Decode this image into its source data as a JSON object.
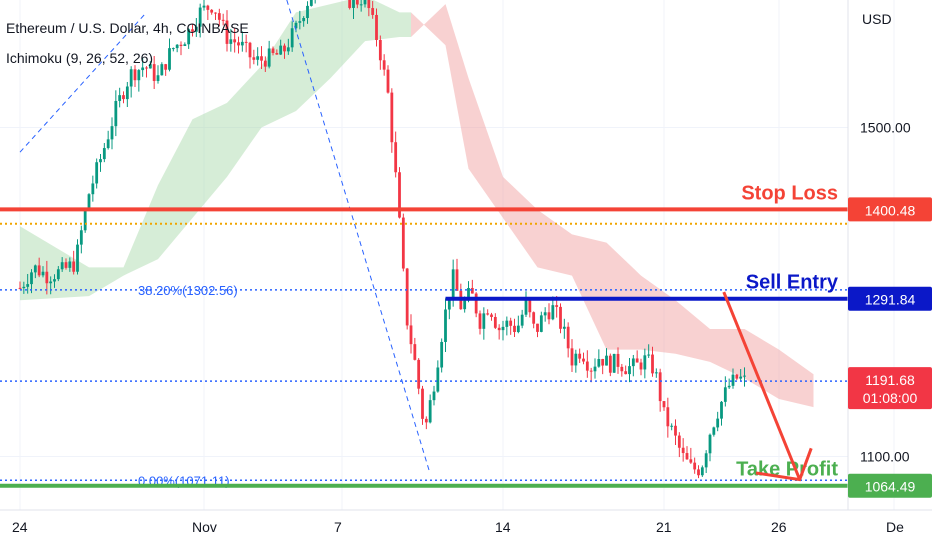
{
  "header": {
    "symbol": "Ethereum / U.S. Dollar, 4h, COINBASE",
    "indicator": "Ichimoku (9, 26, 52, 26)",
    "currency": "USD"
  },
  "chart_data": {
    "type": "candlestick",
    "title": "Ethereum / U.S. Dollar, 4h, COINBASE",
    "ylabel": "USD",
    "ylim": [
      1035,
      1655
    ],
    "y_ticks": [
      1100,
      1500
    ],
    "y_tick_labels": [
      "1100.00",
      "1500.00"
    ],
    "x_ticks": [
      {
        "label": "24",
        "day": 0
      },
      {
        "label": "Nov",
        "day": 8
      },
      {
        "label": "7",
        "day": 14
      },
      {
        "label": "14",
        "day": 21
      },
      {
        "label": "21",
        "day": 28
      },
      {
        "label": "26",
        "day": 33
      },
      {
        "label": "De",
        "day": 38
      }
    ],
    "close_path": [
      [
        0.0,
        1305
      ],
      [
        0.6,
        1330
      ],
      [
        1.2,
        1320
      ],
      [
        1.8,
        1325
      ],
      [
        2.4,
        1335
      ],
      [
        3.0,
        1420
      ],
      [
        3.6,
        1470
      ],
      [
        4.2,
        1525
      ],
      [
        4.8,
        1565
      ],
      [
        5.4,
        1575
      ],
      [
        6.0,
        1560
      ],
      [
        6.6,
        1595
      ],
      [
        7.2,
        1610
      ],
      [
        7.8,
        1640
      ],
      [
        8.4,
        1650
      ],
      [
        9.0,
        1610
      ],
      [
        9.6,
        1600
      ],
      [
        10.2,
        1580
      ],
      [
        10.8,
        1585
      ],
      [
        11.4,
        1590
      ],
      [
        12.0,
        1620
      ],
      [
        12.6,
        1660
      ],
      [
        13.2,
        1680
      ],
      [
        13.8,
        1690
      ],
      [
        14.4,
        1650
      ],
      [
        15.0,
        1660
      ],
      [
        15.6,
        1600
      ],
      [
        16.0,
        1540
      ],
      [
        16.4,
        1420
      ],
      [
        16.8,
        1270
      ],
      [
        17.2,
        1210
      ],
      [
        17.6,
        1130
      ],
      [
        18.0,
        1190
      ],
      [
        18.4,
        1260
      ],
      [
        18.8,
        1320
      ],
      [
        19.2,
        1280
      ],
      [
        19.6,
        1300
      ],
      [
        20.0,
        1265
      ],
      [
        20.4,
        1285
      ],
      [
        20.8,
        1255
      ],
      [
        21.2,
        1262
      ],
      [
        21.6,
        1255
      ],
      [
        22.0,
        1285
      ],
      [
        22.4,
        1250
      ],
      [
        22.8,
        1275
      ],
      [
        23.2,
        1280
      ],
      [
        23.6,
        1255
      ],
      [
        24.0,
        1218
      ],
      [
        24.4,
        1230
      ],
      [
        24.8,
        1208
      ],
      [
        25.2,
        1222
      ],
      [
        25.6,
        1212
      ],
      [
        26.0,
        1215
      ],
      [
        26.4,
        1208
      ],
      [
        26.8,
        1210
      ],
      [
        27.2,
        1218
      ],
      [
        27.6,
        1205
      ],
      [
        28.0,
        1150
      ],
      [
        28.4,
        1128
      ],
      [
        28.8,
        1100
      ],
      [
        29.2,
        1085
      ],
      [
        29.6,
        1085
      ],
      [
        30.0,
        1130
      ],
      [
        30.4,
        1160
      ],
      [
        30.8,
        1185
      ],
      [
        31.2,
        1196
      ],
      [
        31.5,
        1192
      ]
    ],
    "ichimoku_cloud": [
      {
        "day": 0.0,
        "a": 1380,
        "b": 1290,
        "color": "green"
      },
      {
        "day": 3.0,
        "a": 1330,
        "b": 1295,
        "color": "green"
      },
      {
        "day": 4.5,
        "a": 1330,
        "b": 1320,
        "color": "green"
      },
      {
        "day": 6.0,
        "a": 1430,
        "b": 1340,
        "color": "green"
      },
      {
        "day": 7.5,
        "a": 1510,
        "b": 1390,
        "color": "green"
      },
      {
        "day": 9.0,
        "a": 1530,
        "b": 1440,
        "color": "green"
      },
      {
        "day": 10.5,
        "a": 1575,
        "b": 1500,
        "color": "green"
      },
      {
        "day": 12.0,
        "a": 1640,
        "b": 1520,
        "color": "green"
      },
      {
        "day": 13.5,
        "a": 1650,
        "b": 1560,
        "color": "green"
      },
      {
        "day": 15.0,
        "a": 1660,
        "b": 1605,
        "color": "green"
      },
      {
        "day": 16.5,
        "a": 1640,
        "b": 1610,
        "color": "green"
      },
      {
        "day": 17.0,
        "a": 1640,
        "b": 1610,
        "color": "red"
      },
      {
        "day": 18.5,
        "a": 1600,
        "b": 1650,
        "color": "red"
      },
      {
        "day": 19.5,
        "a": 1450,
        "b": 1560,
        "color": "red"
      },
      {
        "day": 21.0,
        "a": 1390,
        "b": 1440,
        "color": "red"
      },
      {
        "day": 22.5,
        "a": 1330,
        "b": 1400,
        "color": "red"
      },
      {
        "day": 24.0,
        "a": 1320,
        "b": 1370,
        "color": "red"
      },
      {
        "day": 25.5,
        "a": 1230,
        "b": 1360,
        "color": "red"
      },
      {
        "day": 27.0,
        "a": 1230,
        "b": 1320,
        "color": "red"
      },
      {
        "day": 28.5,
        "a": 1225,
        "b": 1290,
        "color": "red"
      },
      {
        "day": 30.0,
        "a": 1215,
        "b": 1255,
        "color": "red"
      },
      {
        "day": 31.5,
        "a": 1195,
        "b": 1255,
        "color": "red"
      },
      {
        "day": 33.0,
        "a": 1170,
        "b": 1230,
        "color": "red"
      },
      {
        "day": 34.5,
        "a": 1160,
        "b": 1200,
        "color": "red"
      }
    ],
    "levels": [
      {
        "label": "Stop Loss",
        "value": 1400.48,
        "badge": "1400.48",
        "color": "#f44336"
      },
      {
        "label": "Sell Entry",
        "value": 1291.84,
        "badge": "1291.84",
        "color": "#0b18c8"
      },
      {
        "label": "Take Profit",
        "value": 1064.49,
        "badge": "1064.49",
        "color": "#4caf50"
      }
    ],
    "current_price": {
      "value": 1191.68,
      "badge": "1191.68",
      "countdown": "01:08:00",
      "color": "#f23645"
    },
    "orange_level": {
      "value": 1383
    },
    "fib_levels": [
      {
        "label": "38.20%(1302.56)",
        "value": 1302.56
      },
      {
        "label": "0.00%(1071.11)",
        "value": 1071.11
      }
    ],
    "colors": {
      "up": "#089981",
      "down": "#f23645",
      "cloud_green": "#a5d6a7",
      "cloud_red": "#ef9a9a",
      "fib": "#2962ff",
      "orange": "#f0a500",
      "grid": "#f0f3fa"
    }
  }
}
